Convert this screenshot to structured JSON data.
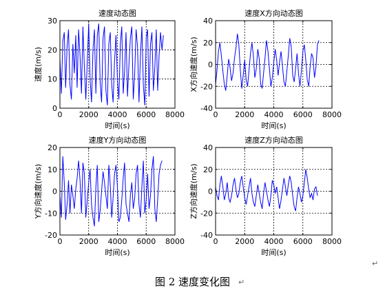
{
  "figure_caption": "图 2  速度变化图",
  "paragraph_mark": "↵",
  "chart_data": [
    {
      "type": "line",
      "title": "速度动态图",
      "xlabel": "时间(s)",
      "ylabel": "速度(m/s)",
      "xlim": [
        0,
        8000
      ],
      "ylim": [
        0,
        30
      ],
      "xticks": [
        0,
        2000,
        4000,
        6000,
        8000
      ],
      "yticks": [
        0,
        10,
        20,
        30
      ],
      "grid": true,
      "series": [
        {
          "color": "#0000ff",
          "x": [
            0,
            100,
            200,
            300,
            400,
            500,
            600,
            700,
            800,
            900,
            1000,
            1100,
            1200,
            1300,
            1400,
            1500,
            1600,
            1700,
            1800,
            1900,
            2000,
            2100,
            2200,
            2300,
            2400,
            2500,
            2600,
            2700,
            2800,
            2900,
            3000,
            3100,
            3200,
            3300,
            3400,
            3500,
            3600,
            3700,
            3800,
            3900,
            4000,
            4100,
            4200,
            4300,
            4400,
            4500,
            4600,
            4700,
            4800,
            4900,
            5000,
            5100,
            5200,
            5300,
            5400,
            5500,
            5600,
            5700,
            5800,
            5900,
            6000,
            6100,
            6200,
            6300,
            6400,
            6500,
            6600,
            6700,
            6800,
            6900,
            7000,
            7100,
            7200
          ],
          "y": [
            17,
            5,
            23,
            26,
            7,
            21,
            27,
            8,
            3,
            22,
            12,
            25,
            7,
            27,
            18,
            5,
            28,
            14,
            3,
            16,
            29,
            10,
            2,
            20,
            27,
            5,
            25,
            29,
            9,
            2,
            24,
            28,
            6,
            1,
            22,
            26,
            8,
            2,
            16,
            25,
            10,
            3,
            22,
            28,
            5,
            13,
            26,
            4,
            15,
            24,
            28,
            3,
            12,
            27,
            21,
            2,
            18,
            28,
            8,
            1,
            24,
            27,
            4,
            22,
            26,
            6,
            14,
            27,
            6,
            18,
            26,
            20,
            25
          ]
        }
      ]
    },
    {
      "type": "line",
      "title": "速度X方向动态图",
      "xlabel": "时间(s)",
      "ylabel": "X方向速度(m/s)",
      "xlim": [
        0,
        8000
      ],
      "ylim": [
        -40,
        40
      ],
      "xticks": [
        0,
        2000,
        4000,
        6000,
        8000
      ],
      "yticks": [
        -40,
        -20,
        0,
        20,
        40
      ],
      "grid": true,
      "series": [
        {
          "color": "#0000ff",
          "x": [
            0,
            100,
            200,
            300,
            400,
            500,
            600,
            700,
            800,
            900,
            1000,
            1100,
            1200,
            1300,
            1400,
            1500,
            1600,
            1700,
            1800,
            1900,
            2000,
            2100,
            2200,
            2300,
            2400,
            2500,
            2600,
            2700,
            2800,
            2900,
            3000,
            3100,
            3200,
            3300,
            3400,
            3500,
            3600,
            3700,
            3800,
            3900,
            4000,
            4100,
            4200,
            4300,
            4400,
            4500,
            4600,
            4700,
            4800,
            4900,
            5000,
            5100,
            5200,
            5300,
            5400,
            5500,
            5600,
            5700,
            5800,
            5900,
            6000,
            6100,
            6200,
            6300,
            6400,
            6500,
            6600,
            6700,
            6800,
            6900,
            7000,
            7100
          ],
          "y": [
            -18,
            -5,
            12,
            20,
            8,
            -6,
            -18,
            -24,
            -10,
            5,
            -3,
            -15,
            -8,
            6,
            15,
            28,
            18,
            -5,
            -22,
            -10,
            4,
            -14,
            -20,
            -5,
            10,
            20,
            8,
            -12,
            -4,
            14,
            5,
            -18,
            -22,
            -8,
            6,
            22,
            12,
            -4,
            -20,
            -12,
            2,
            14,
            4,
            -10,
            2,
            12,
            -2,
            -16,
            -20,
            -6,
            8,
            24,
            16,
            -10,
            -16,
            -4,
            10,
            -8,
            -20,
            -6,
            12,
            18,
            4,
            -14,
            -20,
            -2,
            10,
            6,
            -12,
            -2,
            18,
            22
          ]
        }
      ]
    },
    {
      "type": "line",
      "title": "速度Y方向动态图",
      "xlabel": "时间(s)",
      "ylabel": "Y方向速度(m/s)",
      "xlim": [
        0,
        8000
      ],
      "ylim": [
        -20,
        20
      ],
      "xticks": [
        0,
        2000,
        4000,
        6000,
        8000
      ],
      "yticks": [
        -20,
        -10,
        0,
        10,
        20
      ],
      "grid": true,
      "series": [
        {
          "color": "#0000ff",
          "x": [
            0,
            100,
            200,
            300,
            400,
            500,
            600,
            700,
            800,
            900,
            1000,
            1100,
            1200,
            1300,
            1400,
            1500,
            1600,
            1700,
            1800,
            1900,
            2000,
            2100,
            2200,
            2300,
            2400,
            2500,
            2600,
            2700,
            2800,
            2900,
            3000,
            3100,
            3200,
            3300,
            3400,
            3500,
            3600,
            3700,
            3800,
            3900,
            4000,
            4100,
            4200,
            4300,
            4400,
            4500,
            4600,
            4700,
            4800,
            4900,
            5000,
            5100,
            5200,
            5300,
            5400,
            5500,
            5600,
            5700,
            5800,
            5900,
            6000,
            6100,
            6200,
            6300,
            6400,
            6500,
            6600,
            6700,
            6800,
            6900,
            7000,
            7100
          ],
          "y": [
            -2,
            -12,
            16,
            4,
            -13,
            -6,
            5,
            -10,
            3,
            -2,
            -8,
            1,
            6,
            14,
            5,
            -10,
            13,
            8,
            -12,
            -4,
            4,
            10,
            -6,
            -12,
            -16,
            2,
            12,
            -14,
            -9,
            0,
            9,
            4,
            -2,
            -8,
            12,
            3,
            -12,
            -3,
            8,
            12,
            2,
            -14,
            -12,
            -4,
            6,
            13,
            -6,
            -10,
            -14,
            -2,
            4,
            -8,
            -3,
            8,
            12,
            -6,
            -12,
            2,
            14,
            -10,
            -4,
            8,
            -8,
            -2,
            10,
            16,
            -8,
            -14,
            -4,
            8,
            12,
            14
          ]
        }
      ]
    },
    {
      "type": "line",
      "title": "速度Z方向动态图",
      "xlabel": "时间(s)",
      "ylabel": "Z方向速度(m/s)",
      "xlim": [
        0,
        8000
      ],
      "ylim": [
        -40,
        40
      ],
      "xticks": [
        0,
        2000,
        4000,
        6000,
        8000
      ],
      "yticks": [
        -40,
        -20,
        0,
        20,
        40
      ],
      "grid": true,
      "series": [
        {
          "color": "#0000ff",
          "x": [
            0,
            100,
            200,
            300,
            400,
            500,
            600,
            700,
            800,
            900,
            1000,
            1100,
            1200,
            1300,
            1400,
            1500,
            1600,
            1700,
            1800,
            1900,
            2000,
            2100,
            2200,
            2300,
            2400,
            2500,
            2600,
            2700,
            2800,
            2900,
            3000,
            3100,
            3200,
            3300,
            3400,
            3500,
            3600,
            3700,
            3800,
            3900,
            4000,
            4100,
            4200,
            4300,
            4400,
            4500,
            4600,
            4700,
            4800,
            4900,
            5000,
            5100,
            5200,
            5300,
            5400,
            5500,
            5600,
            5700,
            5800,
            5900,
            6000,
            6100,
            6200,
            6300,
            6400,
            6500,
            6600,
            6700,
            6800,
            6900,
            7000
          ],
          "y": [
            4,
            -4,
            -8,
            6,
            14,
            4,
            -8,
            -2,
            8,
            -6,
            -10,
            -4,
            6,
            12,
            2,
            -6,
            -2,
            8,
            14,
            4,
            -6,
            -12,
            -4,
            4,
            12,
            -2,
            -10,
            -14,
            -4,
            6,
            -2,
            -10,
            -16,
            -2,
            8,
            0,
            -8,
            -14,
            -4,
            10,
            6,
            -2,
            4,
            -6,
            -16,
            -8,
            2,
            12,
            4,
            -4,
            6,
            14,
            8,
            -4,
            -14,
            -18,
            -6,
            4,
            -2,
            -10,
            -4,
            8,
            20,
            12,
            2,
            -6,
            -2,
            -8,
            2,
            4,
            -4
          ]
        }
      ]
    }
  ]
}
